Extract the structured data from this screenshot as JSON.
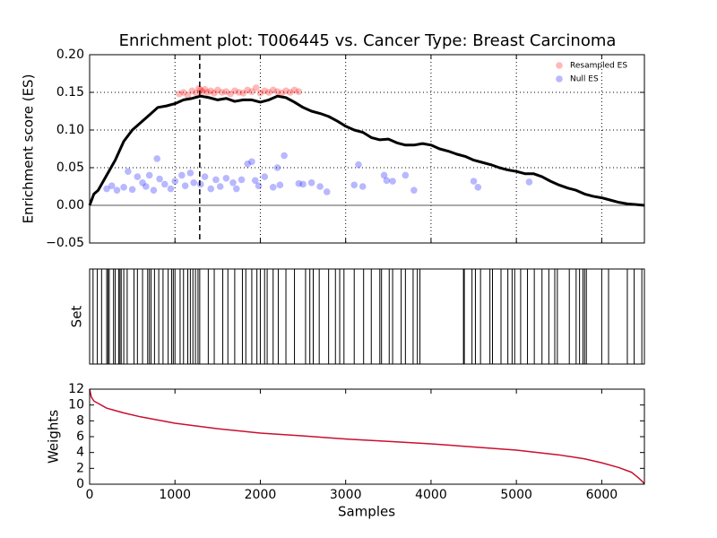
{
  "chart_data": [
    {
      "type": "line",
      "title": "Enrichment plot: T006445 vs. Cancer Type: Breast Carcinoma",
      "y_label": "Enrichment score (ES)",
      "xlim": [
        0,
        6500
      ],
      "ylim": [
        -0.05,
        0.2
      ],
      "yticks": [
        {
          "value": -0.05,
          "label": "−0.05"
        },
        {
          "value": 0,
          "label": "0.00"
        },
        0.05,
        {
          "value": 0.1,
          "label": "0.10"
        },
        0.15,
        {
          "value": 0.2,
          "label": "0.20"
        }
      ],
      "grid_x": [
        1000,
        2000,
        3000,
        4000,
        5000,
        6000
      ],
      "grid": true,
      "hline_y": 0,
      "vline_x": 1290,
      "legend": "upper right",
      "color": "#000000",
      "x": [
        0,
        50,
        100,
        200,
        300,
        400,
        500,
        600,
        700,
        800,
        900,
        1000,
        1100,
        1200,
        1300,
        1400,
        1500,
        1600,
        1700,
        1800,
        1900,
        2000,
        2100,
        2200,
        2300,
        2400,
        2500,
        2600,
        2700,
        2800,
        2900,
        3000,
        3100,
        3200,
        3300,
        3400,
        3500,
        3600,
        3700,
        3800,
        3900,
        4000,
        4100,
        4200,
        4300,
        4400,
        4500,
        4600,
        4700,
        4800,
        4900,
        5000,
        5100,
        5200,
        5300,
        5400,
        5500,
        5600,
        5700,
        5800,
        5900,
        6000,
        6100,
        6200,
        6300,
        6400,
        6500
      ],
      "values": [
        0,
        0.015,
        0.02,
        0.04,
        0.06,
        0.085,
        0.1,
        0.11,
        0.12,
        0.13,
        0.132,
        0.135,
        0.14,
        0.142,
        0.145,
        0.143,
        0.14,
        0.142,
        0.138,
        0.14,
        0.14,
        0.137,
        0.14,
        0.145,
        0.143,
        0.137,
        0.13,
        0.125,
        0.122,
        0.118,
        0.112,
        0.105,
        0.1,
        0.097,
        0.09,
        0.087,
        0.088,
        0.083,
        0.08,
        0.08,
        0.082,
        0.08,
        0.075,
        0.072,
        0.068,
        0.065,
        0.06,
        0.057,
        0.054,
        0.05,
        0.047,
        0.045,
        0.042,
        0.042,
        0.038,
        0.032,
        0.027,
        0.023,
        0.02,
        0.015,
        0.012,
        0.01,
        0.007,
        0.004,
        0.002,
        0.001,
        0
      ],
      "series": [
        {
          "name": "Resampled ES",
          "color": "#ff0000",
          "x": [
            1050,
            1100,
            1150,
            1200,
            1250,
            1280,
            1300,
            1320,
            1350,
            1380,
            1420,
            1460,
            1500,
            1550,
            1600,
            1650,
            1700,
            1750,
            1800,
            1850,
            1900,
            1950,
            2000,
            2050,
            2100,
            2150,
            2200,
            2250,
            2300,
            2350,
            2400,
            2450
          ],
          "values": [
            0.148,
            0.15,
            0.146,
            0.152,
            0.149,
            0.155,
            0.153,
            0.151,
            0.154,
            0.15,
            0.152,
            0.149,
            0.153,
            0.15,
            0.151,
            0.148,
            0.152,
            0.15,
            0.149,
            0.153,
            0.151,
            0.156,
            0.149,
            0.152,
            0.15,
            0.153,
            0.151,
            0.149,
            0.152,
            0.15,
            0.153,
            0.151
          ]
        },
        {
          "name": "Null ES",
          "color": "#0000ff",
          "x": [
            200,
            260,
            320,
            400,
            450,
            500,
            560,
            620,
            660,
            700,
            750,
            790,
            820,
            880,
            950,
            1000,
            1080,
            1120,
            1180,
            1220,
            1300,
            1350,
            1420,
            1480,
            1530,
            1600,
            1680,
            1720,
            1780,
            1850,
            1900,
            1940,
            1980,
            2050,
            2150,
            2200,
            2230,
            2280,
            2450,
            2500,
            2600,
            2700,
            2780,
            3100,
            3150,
            3200,
            3450,
            3480,
            3550,
            3700,
            3800,
            4500,
            4550,
            5150
          ],
          "values": [
            0.022,
            0.026,
            0.02,
            0.024,
            0.045,
            0.021,
            0.038,
            0.03,
            0.025,
            0.04,
            0.02,
            0.062,
            0.035,
            0.028,
            0.022,
            0.032,
            0.04,
            0.026,
            0.043,
            0.03,
            0.028,
            0.038,
            0.022,
            0.034,
            0.025,
            0.036,
            0.03,
            0.022,
            0.034,
            0.055,
            0.058,
            0.033,
            0.026,
            0.038,
            0.024,
            0.05,
            0.027,
            0.066,
            0.029,
            0.028,
            0.03,
            0.025,
            0.018,
            0.027,
            0.054,
            0.025,
            0.04,
            0.033,
            0.032,
            0.04,
            0.02,
            0.032,
            0.024,
            0.031
          ]
        }
      ]
    },
    {
      "type": "event",
      "y_label": "Set",
      "xlim": [
        0,
        6500
      ],
      "x": [
        40,
        90,
        140,
        200,
        215,
        230,
        280,
        300,
        340,
        355,
        370,
        400,
        440,
        520,
        560,
        620,
        680,
        700,
        720,
        760,
        810,
        860,
        920,
        960,
        980,
        1000,
        1060,
        1100,
        1150,
        1180,
        1210,
        1240,
        1270,
        1290,
        1390,
        1460,
        1560,
        1620,
        1700,
        1790,
        1830,
        1900,
        1960,
        2000,
        2050,
        2080,
        2150,
        2210,
        2300,
        2400,
        2530,
        2580,
        2620,
        2690,
        2800,
        2880,
        2930,
        2980,
        3100,
        3210,
        3300,
        3400,
        3420,
        3510,
        3550,
        3650,
        3700,
        3790,
        3840,
        3870,
        4380,
        4390,
        4480,
        4520,
        4580,
        4690,
        4720,
        4820,
        4900,
        4950,
        4980,
        5050,
        5130,
        5210,
        5300,
        5380,
        5450,
        5480,
        5620,
        5700,
        5740,
        5780,
        5800,
        5820,
        6000,
        6080,
        6300,
        6380,
        6470
      ]
    },
    {
      "type": "line",
      "x_label": "Samples",
      "y_label": "Weights",
      "color": "#c8102e",
      "xlim": [
        0,
        6500
      ],
      "ylim": [
        0,
        12
      ],
      "xticks": [
        0,
        1000,
        2000,
        3000,
        4000,
        5000,
        6000
      ],
      "yticks": [
        0,
        2,
        4,
        6,
        8,
        10,
        12
      ],
      "x": [
        0,
        20,
        50,
        100,
        200,
        400,
        600,
        1000,
        1500,
        2000,
        2500,
        3000,
        3500,
        4000,
        4500,
        5000,
        5500,
        5800,
        6000,
        6200,
        6350,
        6420,
        6480,
        6500
      ],
      "values": [
        12,
        11,
        10.5,
        10.2,
        9.6,
        9,
        8.5,
        7.7,
        7,
        6.45,
        6.1,
        5.7,
        5.4,
        5.1,
        4.7,
        4.3,
        3.7,
        3.2,
        2.7,
        2.1,
        1.5,
        0.9,
        0.3,
        0
      ]
    }
  ]
}
